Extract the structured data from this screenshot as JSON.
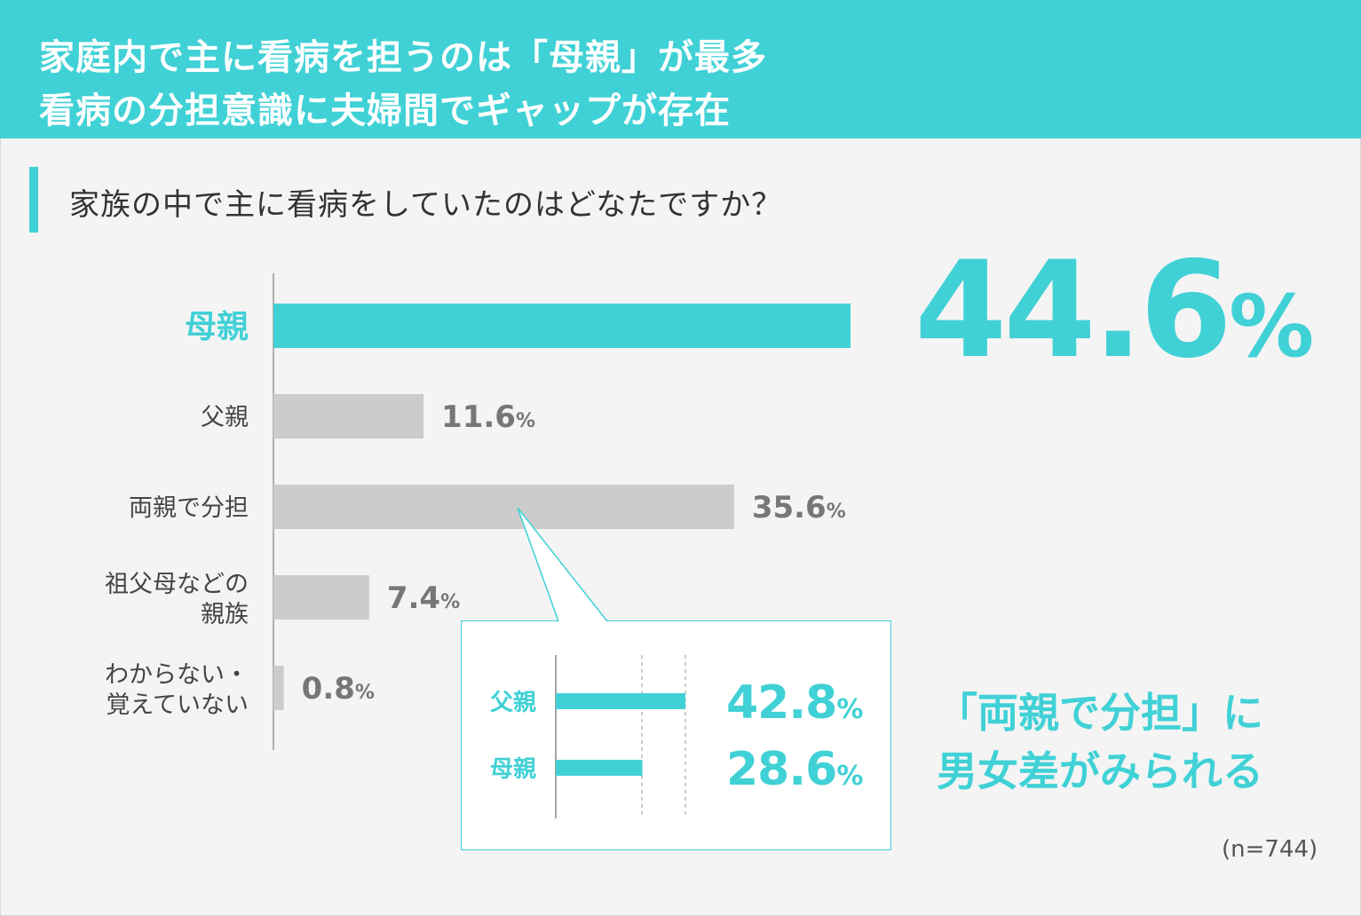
{
  "header": {
    "line1": "家庭内で主に看病を担うのは「母親」が最多",
    "line2": "看病の分担意識に夫婦間でギャップが存在"
  },
  "question": "家族の中で主に看病をしていたのはどなたですか？",
  "colors": {
    "accent": "#40d1d6",
    "bar_gray": "#cccccc",
    "label_gray": "#444444",
    "value_gray": "#777777"
  },
  "chart_data": [
    {
      "type": "bar",
      "orientation": "horizontal",
      "categories": [
        "母親",
        "父親",
        "両親で分担",
        "祖父母などの親族",
        "わからない・覚えていない"
      ],
      "category_lines": [
        [
          "母親"
        ],
        [
          "父親"
        ],
        [
          "両親で分担"
        ],
        [
          "祖父母などの",
          "親族"
        ],
        [
          "わからない・",
          "覚えていない"
        ]
      ],
      "values": [
        44.6,
        11.6,
        35.6,
        7.4,
        0.8
      ],
      "value_labels": [
        "44.6",
        "11.6",
        "35.6",
        "7.4",
        "0.8"
      ],
      "unit": "%",
      "highlight_index": 0,
      "highlight_label": {
        "number": "44.6",
        "unit": "%"
      }
    },
    {
      "type": "bar",
      "orientation": "horizontal",
      "categories": [
        "父親",
        "母親"
      ],
      "values": [
        42.8,
        28.6
      ],
      "value_labels": [
        "42.8",
        "28.6"
      ],
      "unit": "%"
    }
  ],
  "callout": {
    "line1": "「両親で分担」に",
    "line2": "男女差がみられる"
  },
  "sample_size": "(n=744)"
}
